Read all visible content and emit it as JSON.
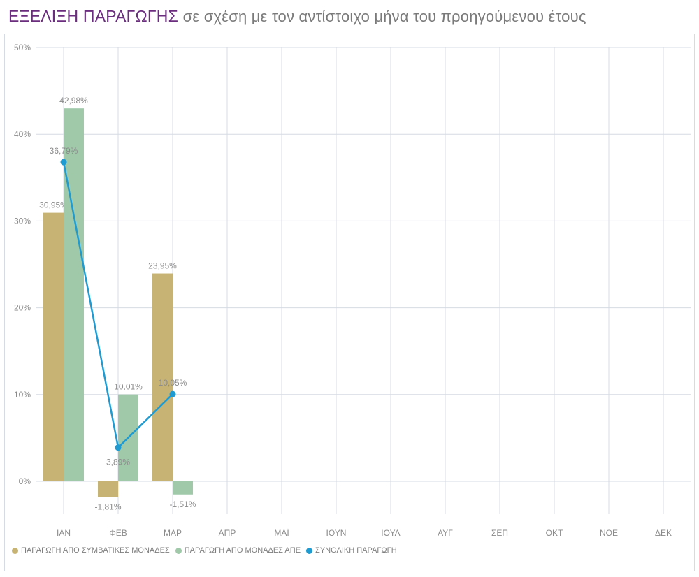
{
  "header": {
    "title_main": "ΕΞΕΛΙΞΗ ΠΑΡΑΓΩΓΗΣ",
    "title_sub": "σε σχέση με τον αντίστοιχο μήνα του προηγούμενου έτους"
  },
  "chart_data": {
    "type": "bar",
    "categories": [
      "ΙΑΝ",
      "ΦΕΒ",
      "ΜΑΡ",
      "ΑΠΡ",
      "ΜΑΪ",
      "ΙΟΥΝ",
      "ΙΟΥΛ",
      "ΑΥΓ",
      "ΣΕΠ",
      "ΟΚΤ",
      "ΝΟΕ",
      "ΔΕΚ"
    ],
    "series": [
      {
        "name": "ΠΑΡΑΓΩΓΗ ΑΠΟ ΣΥΜΒΑΤΙΚΕΣ ΜΟΝΑΔΕΣ",
        "kind": "bar",
        "color": "#c7b374",
        "values": [
          30.95,
          -1.81,
          23.95,
          null,
          null,
          null,
          null,
          null,
          null,
          null,
          null,
          null
        ],
        "labels": [
          "30,95%",
          "-1,81%",
          "23,95%"
        ]
      },
      {
        "name": "ΠΑΡΑΓΩΓΗ ΑΠΟ ΜΟΝΑΔΕΣ ΑΠΕ",
        "kind": "bar",
        "color": "#9fc9a9",
        "values": [
          42.98,
          10.01,
          -1.51,
          null,
          null,
          null,
          null,
          null,
          null,
          null,
          null,
          null
        ],
        "labels": [
          "42,98%",
          "10,01%",
          "-1,51%"
        ]
      },
      {
        "name": "ΣΥΝΟΛΙΚΗ ΠΑΡΑΓΩΓΗ",
        "kind": "line",
        "color": "#1f9bd1",
        "values": [
          36.79,
          3.89,
          10.05,
          null,
          null,
          null,
          null,
          null,
          null,
          null,
          null,
          null
        ],
        "labels": [
          "36,79%",
          "3,89%",
          "10,05%"
        ]
      }
    ],
    "y_ticks": [
      "0%",
      "10%",
      "20%",
      "30%",
      "40%",
      "50%"
    ],
    "ylim": [
      -5,
      50
    ],
    "grid": true,
    "legend_position": "bottom-left",
    "title": "ΕΞΕΛΙΞΗ ΠΑΡΑΓΩΓΗΣ σε σχέση με τον αντίστοιχο μήνα του προηγούμενου έτους"
  }
}
